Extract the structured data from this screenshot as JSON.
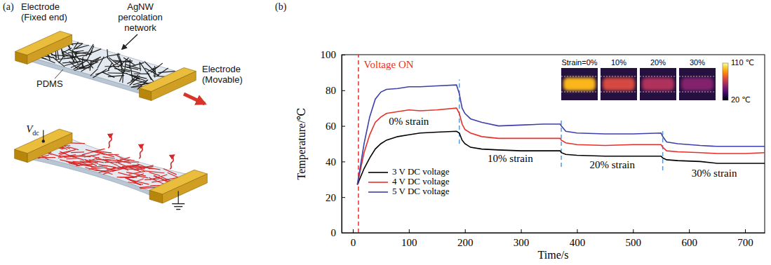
{
  "diagram": {
    "panel_label": "(a)",
    "fixed_electrode": [
      "Electrode",
      "(Fixed end)"
    ],
    "network": [
      "AgNW",
      "percolation",
      "network"
    ],
    "movable_electrode": [
      "Electrode",
      "(Movable)"
    ],
    "substrate": "PDMS",
    "voltage": {
      "symbol": "V",
      "subscript": "dc"
    }
  },
  "chart_data": {
    "type": "line",
    "panel_label": "(b)",
    "x_label": "Time/s",
    "y_label": "Temperature/℃",
    "x": [
      8,
      20,
      30,
      40,
      50,
      60,
      80,
      100,
      120,
      150,
      185,
      190,
      195,
      200,
      210,
      230,
      260,
      300,
      340,
      370,
      372,
      380,
      400,
      450,
      500,
      550,
      553,
      560,
      580,
      620,
      650,
      700,
      735
    ],
    "series": [
      {
        "name": "3 V DC voltage",
        "color": "#000000",
        "values": [
          27,
          36,
          42,
          47,
          50,
          52,
          54,
          55,
          56,
          56.5,
          57,
          56,
          52,
          50,
          48,
          47,
          46.5,
          46,
          46,
          46,
          45,
          44,
          43.5,
          43,
          43,
          43,
          42,
          41,
          40.5,
          40,
          39,
          39,
          39
        ]
      },
      {
        "name": "4 V DC voltage",
        "color": "#e8302a",
        "values": [
          27,
          45,
          55,
          62,
          65,
          67,
          68,
          69,
          68.5,
          69,
          70,
          67,
          61,
          58,
          56,
          54,
          53,
          53,
          53,
          53,
          52,
          50.5,
          49.5,
          49,
          49.5,
          49.5,
          48,
          46,
          45.5,
          45,
          44.5,
          44.5,
          45
        ]
      },
      {
        "name": "5 V DC voltage",
        "color": "#3e3fa8",
        "values": [
          27,
          50,
          65,
          75,
          79,
          80.5,
          81,
          82,
          82,
          82.5,
          83,
          78,
          70,
          67,
          64,
          62,
          60,
          60.5,
          61,
          61,
          60,
          57,
          56,
          55.5,
          55.5,
          56,
          54,
          51,
          50,
          49,
          48.5,
          48.5,
          48.5
        ]
      }
    ],
    "xlim": [
      -20,
      735
    ],
    "xticks": [
      0,
      100,
      200,
      300,
      400,
      500,
      600,
      700
    ],
    "ylim": [
      0,
      100
    ],
    "yticks": [
      0,
      20,
      40,
      60,
      80,
      100
    ],
    "grid": false,
    "legend": "lower left",
    "markers": [
      {
        "x": 10,
        "y": [
          0,
          100
        ],
        "color": "#e8302a",
        "line_style": "dashed"
      },
      {
        "x": 190,
        "y": [
          50,
          86
        ],
        "color": "#5b9bd5",
        "line_style": "dashed"
      },
      {
        "x": 372,
        "y": [
          37,
          63
        ],
        "color": "#5b9bd5",
        "line_style": "dashed"
      },
      {
        "x": 553,
        "y": [
          35,
          58
        ],
        "color": "#5b9bd5",
        "line_style": "dashed"
      }
    ],
    "annotations": [
      {
        "text": "Voltage ON",
        "x": 64,
        "y": 94,
        "color": "#e8302a"
      },
      {
        "text": "0% strain",
        "x": 100,
        "y": 62
      },
      {
        "text": "10% strain",
        "x": 281,
        "y": 41
      },
      {
        "text": "20% strain",
        "x": 463,
        "y": 37.5
      },
      {
        "text": "30% strain",
        "x": 645,
        "y": 33
      }
    ],
    "inset": {
      "labels": [
        "Strain=0%",
        "10%",
        "20%",
        "30%"
      ],
      "values": [
        95,
        72,
        62,
        52
      ],
      "colorbar": {
        "range": [
          20,
          110
        ],
        "ticks": [
          {
            "value": 110,
            "label": "110 ℃"
          },
          {
            "value": 20,
            "label": "20 ℃"
          }
        ]
      }
    }
  }
}
